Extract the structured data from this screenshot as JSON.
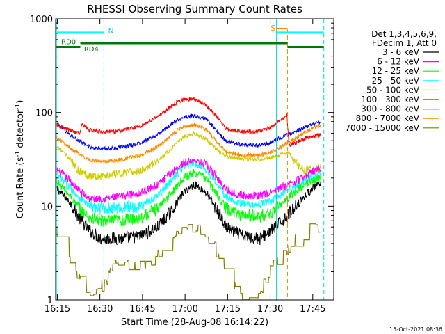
{
  "chart_data": {
    "type": "line",
    "title": "RHESSI Observing Summary Count Rates",
    "xlabel": "Start Time (28-Aug-08 16:14:22)",
    "ylabel_main": "Count Rate (s",
    "ylabel_sup1": "-1",
    "ylabel_mid": " detector",
    "ylabel_sup2": "-1",
    "ylabel_end": ")",
    "y_scale": "log",
    "ylim": [
      1,
      1000
    ],
    "xlim_minutes": [
      0,
      98
    ],
    "x_ticks": [
      {
        "label": "16:15",
        "min": 0.6
      },
      {
        "label": "16:30",
        "min": 15.6
      },
      {
        "label": "16:45",
        "min": 30.6
      },
      {
        "label": "17:00",
        "min": 45.6
      },
      {
        "label": "17:15",
        "min": 60.6
      },
      {
        "label": "17:30",
        "min": 75.6
      },
      {
        "label": "17:45",
        "min": 90.6
      }
    ],
    "y_ticks": [
      {
        "label": "1",
        "value": 1
      },
      {
        "label": "10",
        "value": 10
      },
      {
        "label": "100",
        "value": 100
      },
      {
        "label": "1000",
        "value": 1000
      }
    ],
    "legend": {
      "header1": "Det 1,3,4,5,6,9,",
      "header2": "FDecim 1, Att 0",
      "placement": "right"
    },
    "series": [
      {
        "name": "3 - 6 keV",
        "color": "#000000",
        "x": [
          0,
          5,
          9,
          12,
          16,
          22,
          30,
          36,
          41,
          45,
          49,
          53,
          57,
          60,
          66,
          72,
          76,
          80,
          84,
          88,
          91,
          93.5
        ],
        "y": [
          16,
          11,
          7,
          5.5,
          4.5,
          4.5,
          4.8,
          6,
          9,
          14,
          17,
          14,
          9,
          6,
          4.8,
          4.5,
          5.5,
          7,
          9.5,
          13,
          16,
          17
        ]
      },
      {
        "name": "6 - 12 keV",
        "color": "#ff00ff",
        "x": [
          0,
          5,
          9,
          12,
          16,
          22,
          30,
          36,
          41,
          45,
          49,
          53,
          57,
          60,
          66,
          72,
          76,
          80,
          84,
          88,
          91,
          93.5
        ],
        "y": [
          25,
          19,
          14,
          12,
          12,
          12.5,
          14,
          17,
          23,
          29,
          31,
          28,
          20,
          15,
          13,
          13,
          14,
          16,
          18,
          21,
          24,
          25
        ]
      },
      {
        "name": "12 - 25 keV",
        "color": "#00ff00",
        "x": [
          0,
          5,
          9,
          12,
          16,
          22,
          30,
          36,
          41,
          45,
          49,
          53,
          57,
          60,
          66,
          72,
          76,
          80,
          84,
          88,
          91,
          93.5
        ],
        "y": [
          19,
          13,
          9,
          7.5,
          7,
          7,
          7.5,
          9.5,
          14,
          20,
          23,
          20,
          13,
          9.5,
          8,
          7.8,
          8.5,
          11,
          14,
          17,
          19,
          20
        ]
      },
      {
        "name": "25 - 50 keV",
        "color": "#00ffff",
        "x": [
          0,
          5,
          9,
          12,
          16,
          22,
          30,
          36,
          41,
          45,
          49,
          53,
          57,
          60,
          66,
          72,
          76,
          80,
          84,
          88,
          91,
          93.5
        ],
        "y": [
          22,
          16,
          12,
          10,
          9.5,
          9.5,
          10,
          13,
          19,
          26,
          29,
          25,
          17,
          12.5,
          10.5,
          10.5,
          11.5,
          13.5,
          16,
          18.5,
          21,
          22
        ]
      },
      {
        "name": "50 - 100 keV",
        "color": "#cccc00",
        "x": [
          0,
          5,
          8,
          12,
          16,
          22,
          30,
          36,
          41,
          45,
          49,
          53,
          57,
          60,
          66,
          72,
          76,
          80,
          82,
          84,
          88,
          91,
          93.5
        ],
        "y": [
          45,
          32,
          24,
          21,
          21,
          22,
          24,
          30,
          42,
          55,
          60,
          52,
          40,
          34,
          32,
          32,
          33,
          36,
          38,
          30,
          24,
          25,
          26
        ]
      },
      {
        "name": "100 - 300 keV",
        "color": "#ff0000",
        "x": [
          0,
          3,
          6,
          8.6,
          9.2,
          12,
          16,
          22,
          30,
          36,
          41,
          45,
          49,
          53,
          57,
          60,
          66,
          72,
          76,
          80,
          81.5,
          82.2,
          86,
          90,
          93.5
        ],
        "y": [
          75,
          68,
          63,
          60,
          75,
          65,
          62,
          63,
          72,
          90,
          118,
          138,
          140,
          120,
          88,
          68,
          62,
          63,
          70,
          85,
          95,
          45,
          50,
          56,
          58
        ]
      },
      {
        "name": "300 - 800 keV",
        "color": "#0000ff",
        "x": [
          0,
          5,
          9,
          12,
          16,
          22,
          30,
          36,
          41,
          45,
          49,
          53,
          57,
          60,
          66,
          72,
          76,
          80,
          84,
          88,
          91,
          93.5
        ],
        "y": [
          78,
          58,
          48,
          43,
          41,
          42,
          47,
          58,
          76,
          90,
          93,
          85,
          63,
          49,
          45,
          45,
          48,
          55,
          62,
          70,
          76,
          78
        ]
      },
      {
        "name": "800 - 7000 keV",
        "color": "#ff8800",
        "x": [
          0,
          5,
          9,
          12,
          16,
          22,
          30,
          36,
          41,
          45,
          49,
          53,
          57,
          60,
          66,
          72,
          76,
          80,
          84,
          88,
          91,
          93.5
        ],
        "y": [
          55,
          42,
          35,
          31,
          30,
          31,
          35,
          43,
          58,
          71,
          74,
          66,
          48,
          38,
          35,
          35,
          38,
          44,
          52,
          62,
          70,
          72
        ]
      },
      {
        "name": "7000 - 15000 keV",
        "color": "#808000",
        "x": [
          0,
          2,
          4,
          6,
          8,
          10,
          12,
          15,
          18,
          21,
          24,
          27,
          30,
          33,
          35,
          37,
          39,
          41,
          43,
          45,
          48,
          51,
          54,
          56,
          58,
          60,
          62,
          64,
          66,
          68,
          70,
          72,
          74,
          76,
          78,
          80,
          82,
          84,
          86,
          88,
          90,
          92,
          93.5
        ],
        "y": [
          5,
          4,
          3,
          2.2,
          1.6,
          1.3,
          1.1,
          1.2,
          1.6,
          2.2,
          2.6,
          2.2,
          2.6,
          2.2,
          2.6,
          3,
          4,
          4.5,
          5,
          5.5,
          6,
          5,
          4.5,
          3.5,
          2.6,
          2,
          1.6,
          1.3,
          1.1,
          1.05,
          1.1,
          1.2,
          1.5,
          2,
          2.6,
          3,
          3.5,
          4,
          4.5,
          5,
          5.5,
          5.8,
          6
        ]
      }
    ],
    "markers": {
      "n_label": "N",
      "s_label": "S",
      "rd0_label": "RD0",
      "rd4_label": "RD4",
      "cyan_dashed_min": [
        17,
        94.5
      ],
      "orange_dashed_min": [
        81.7
      ],
      "cyan_solid_min": [
        0.3,
        77.8
      ],
      "cyan_bar_y": 700,
      "green_bar_y": 550
    },
    "timestamp": "15-Oct-2021 08:36"
  }
}
